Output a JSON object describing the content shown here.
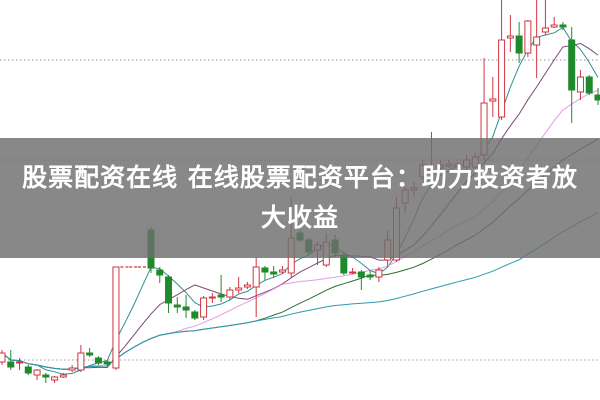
{
  "banner": {
    "title": "股票配资在线 在线股票配资平台：助力投资者放大收益"
  },
  "chart_data": {
    "type": "candlestick",
    "title": "",
    "xlabel": "",
    "ylabel": "",
    "ylim": [
      0,
      400
    ],
    "grid": "dotted horizontal",
    "gridlines": [
      40,
      240,
      340
    ],
    "colors": {
      "up": "#d0343f",
      "down": "#1f8a2c",
      "ma5": "#2f8f8f",
      "ma10": "#7a4a78",
      "ma20": "#e69ae6",
      "ma30": "#2e6e2e",
      "ma60": "#2a9ab0",
      "grid": "#999999"
    },
    "moving_averages": [
      5,
      10,
      20,
      30,
      60
    ],
    "candles": [
      [
        38,
        47,
        50,
        35
      ],
      [
        38,
        33,
        50,
        30
      ],
      [
        37,
        38,
        42,
        30
      ],
      [
        33,
        27,
        35,
        25
      ],
      [
        25,
        30,
        31,
        20
      ],
      [
        25,
        23,
        27,
        17
      ],
      [
        20,
        23,
        24,
        17
      ],
      [
        23,
        25,
        27,
        22
      ],
      [
        30,
        32,
        35,
        28
      ],
      [
        30,
        47,
        55,
        28
      ],
      [
        47,
        45,
        52,
        43
      ],
      [
        42,
        37,
        44,
        35
      ],
      [
        38,
        36,
        40,
        34
      ],
      [
        32,
        133,
        133,
        30
      ],
      [
        133,
        133,
        133,
        133
      ],
      [
        133,
        133,
        133,
        133
      ],
      [
        133,
        133,
        133,
        133
      ],
      [
        170,
        132,
        173,
        127
      ],
      [
        130,
        125,
        133,
        117
      ],
      [
        123,
        97,
        125,
        87
      ],
      [
        95,
        93,
        103,
        87
      ],
      [
        93,
        90,
        105,
        82
      ],
      [
        88,
        82,
        90,
        80
      ],
      [
        83,
        102,
        104,
        80
      ],
      [
        102,
        103,
        107,
        97
      ],
      [
        105,
        103,
        125,
        98
      ],
      [
        103,
        110,
        113,
        100
      ],
      [
        110,
        112,
        123,
        107
      ],
      [
        113,
        115,
        118,
        111
      ],
      [
        113,
        133,
        143,
        83
      ],
      [
        132,
        128,
        134,
        120
      ],
      [
        128,
        126,
        134,
        122
      ],
      [
        128,
        130,
        134,
        126
      ],
      [
        127,
        162,
        203,
        123
      ],
      [
        167,
        160,
        172,
        158
      ],
      [
        160,
        148,
        162,
        145
      ],
      [
        150,
        155,
        158,
        135
      ],
      [
        135,
        158,
        167,
        133
      ],
      [
        160,
        147,
        165,
        142
      ],
      [
        145,
        127,
        147,
        125
      ],
      [
        127,
        128,
        132,
        126
      ],
      [
        128,
        123,
        130,
        110
      ],
      [
        125,
        123,
        130,
        120
      ],
      [
        123,
        130,
        133,
        118
      ],
      [
        140,
        160,
        170,
        133
      ],
      [
        140,
        192,
        203,
        138
      ],
      [
        197,
        210,
        213,
        187
      ],
      [
        210,
        212,
        218,
        203
      ],
      [
        223,
        235,
        240,
        220
      ],
      [
        227,
        230,
        268,
        225
      ],
      [
        232,
        235,
        240,
        228
      ],
      [
        234,
        236,
        240,
        232
      ],
      [
        234,
        236,
        238,
        232
      ],
      [
        233,
        240,
        245,
        230
      ],
      [
        233,
        243,
        247,
        230
      ],
      [
        245,
        297,
        342,
        240
      ],
      [
        299,
        301,
        323,
        283
      ],
      [
        283,
        360,
        400,
        280
      ],
      [
        362,
        364,
        385,
        348
      ],
      [
        364,
        347,
        378,
        337
      ],
      [
        347,
        379,
        380,
        343
      ],
      [
        355,
        363,
        400,
        322
      ],
      [
        368,
        372,
        400,
        365
      ],
      [
        373,
        375,
        383,
        372
      ],
      [
        375,
        373,
        378,
        370
      ],
      [
        360,
        310,
        373,
        277
      ],
      [
        308,
        323,
        330,
        300
      ],
      [
        323,
        307,
        325,
        305
      ],
      [
        305,
        300,
        312,
        295
      ]
    ]
  }
}
